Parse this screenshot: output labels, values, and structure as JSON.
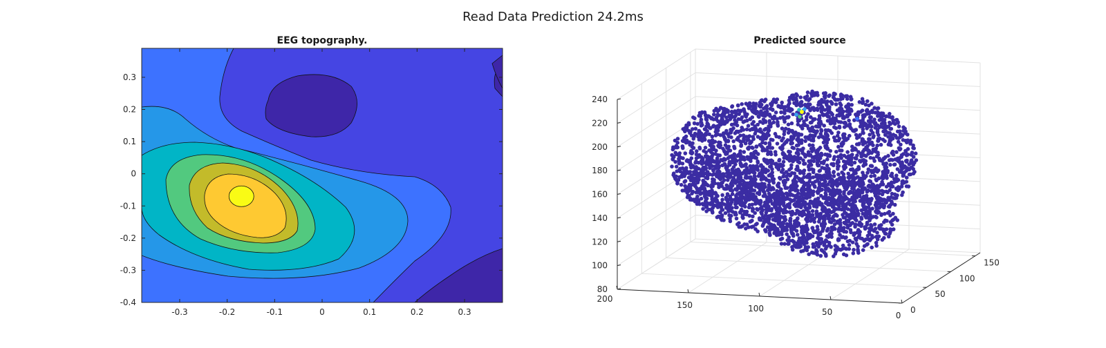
{
  "figure": {
    "title": "Read Data Prediction 24.2ms"
  },
  "chart_data": [
    {
      "type": "heatmap",
      "title": "EEG topography.",
      "xlabel": "",
      "ylabel": "",
      "xlim": [
        -0.38,
        0.38
      ],
      "ylim": [
        -0.4,
        0.39
      ],
      "xticks": [
        -0.3,
        -0.2,
        -0.1,
        0,
        0.1,
        0.2,
        0.3
      ],
      "yticks": [
        -0.4,
        -0.3,
        -0.2,
        -0.1,
        0,
        0.1,
        0.2,
        0.3
      ],
      "xtick_labels": [
        "-0.3",
        "-0.2",
        "-0.1",
        "0",
        "0.1",
        "0.2",
        "0.3"
      ],
      "ytick_labels": [
        "-0.4",
        "-0.3",
        "-0.2",
        "-0.1",
        "0",
        "0.1",
        "0.2",
        "0.3"
      ],
      "contour_levels": 7,
      "peak": {
        "x": -0.17,
        "y": -0.07
      },
      "colormap": [
        "#3e26a8",
        "#4545e3",
        "#3d72ff",
        "#2597e8",
        "#01b5c6",
        "#52c97f",
        "#c3bb2a",
        "#fec932",
        "#f9fb15"
      ]
    },
    {
      "type": "scatter",
      "title": "Predicted source",
      "xlabel": "",
      "ylabel": "",
      "zlabel": "",
      "xlim": [
        0,
        200
      ],
      "ylim": [
        0,
        160
      ],
      "zlim": [
        80,
        240
      ],
      "xticks": [
        200,
        150,
        100,
        50,
        0
      ],
      "yticks": [
        0,
        50,
        100,
        150
      ],
      "zticks": [
        80,
        100,
        120,
        140,
        160,
        180,
        200,
        220,
        240
      ],
      "xtick_labels": [
        "200",
        "150",
        "100",
        "50",
        "0"
      ],
      "ytick_labels": [
        "0",
        "50",
        "100",
        "150"
      ],
      "ztick_labels": [
        "80",
        "100",
        "120",
        "140",
        "160",
        "180",
        "200",
        "220",
        "240"
      ],
      "grid": true,
      "base_color": "#3b2ca3",
      "hotspot": [
        {
          "color": "#f9fb15"
        },
        {
          "color": "#2cb7c0"
        },
        {
          "color": "#3a9ef0"
        },
        {
          "color": "#3a9ef0"
        },
        {
          "color": "#52c97f"
        },
        {
          "color": "#3d72ff"
        }
      ]
    }
  ]
}
